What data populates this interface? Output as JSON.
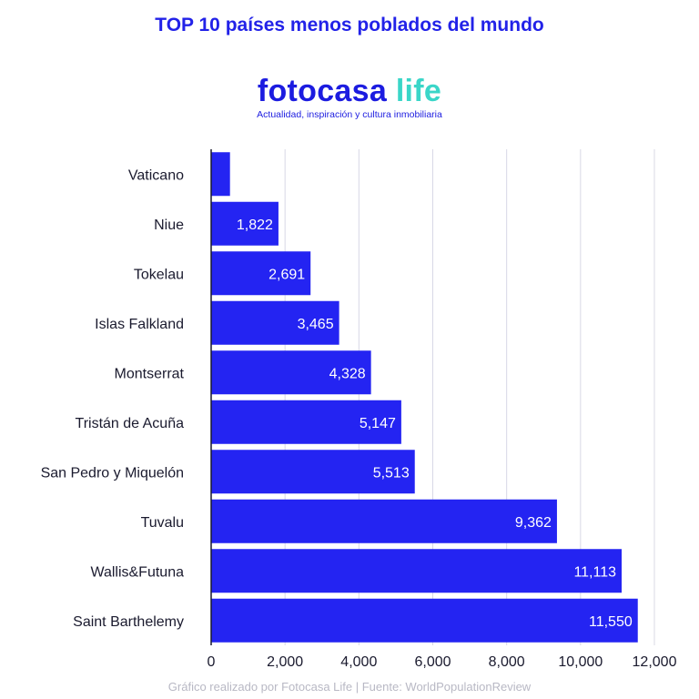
{
  "chart_data": {
    "type": "bar",
    "orientation": "horizontal",
    "title": "TOP 10 países menos poblados del mundo",
    "categories": [
      "Vaticano",
      "Niue",
      "Tokelau",
      "Islas Falkland",
      "Montserrat",
      "Tristán de Acuña",
      "San Pedro y Miquelón",
      "Tuvalu",
      "Wallis&Futuna",
      "Saint Barthelemy"
    ],
    "values": [
      510,
      1822,
      2691,
      3465,
      4328,
      5147,
      5513,
      9362,
      11113,
      11550
    ],
    "data_labels": [
      "",
      "1,822",
      "2,691",
      "3,465",
      "4,328",
      "5,147",
      "5,513",
      "9,362",
      "11,113",
      "11,550"
    ],
    "xlim": [
      0,
      12000
    ],
    "xticks": [
      0,
      2000,
      4000,
      6000,
      8000,
      10000,
      12000
    ],
    "xtick_labels": [
      "0",
      "2,000",
      "4,000",
      "6,000",
      "8,000",
      "10,000",
      "12,000"
    ],
    "grid": true,
    "bar_color": "#2424f2",
    "label_color": "#ffffff",
    "grid_color": "#d8d8e6"
  },
  "logo": {
    "main": "fotocasa",
    "accent": "life",
    "subtitle": "Actualidad, inspiración y cultura inmobiliaria",
    "accent_color": "#3ad6c8"
  },
  "footer": "Gráfico realizado por Fotocasa Life | Fuente: WorldPopulationReview"
}
